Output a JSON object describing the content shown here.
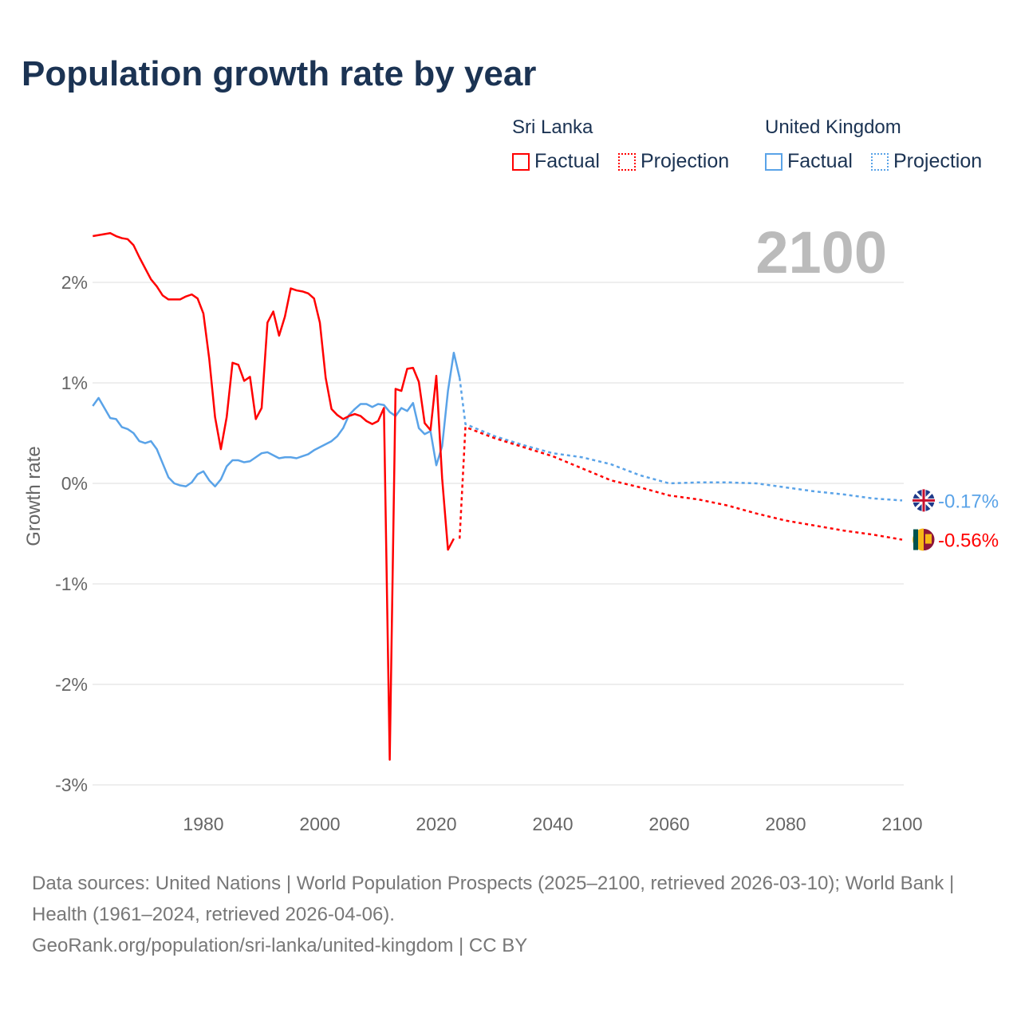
{
  "title": "Population growth rate by year",
  "legend": {
    "groups": [
      {
        "name": "Sri Lanka",
        "factual": "Factual",
        "projection": "Projection",
        "color": "#ff0000"
      },
      {
        "name": "United Kingdom",
        "factual": "Factual",
        "projection": "Projection",
        "color": "#5aa3e8"
      }
    ]
  },
  "sources": {
    "line1": "Data sources: United Nations | World Population Prospects (2025–2100, retrieved 2026-03-10); World Bank | Health (1961–2024, retrieved 2026-04-06).",
    "line2": "GeoRank.org/population/sri-lanka/united-kingdom | CC BY"
  },
  "chart_data": {
    "type": "line",
    "title": "Population growth rate by year",
    "year_label": "2100",
    "xlabel": "",
    "ylabel": "Growth rate",
    "xlim": [
      1961,
      2100
    ],
    "ylim": [
      -3.1,
      2.6
    ],
    "xticks": [
      1980,
      2000,
      2020,
      2040,
      2060,
      2080,
      2100
    ],
    "yticks": [
      {
        "v": 2,
        "label": "2%"
      },
      {
        "v": 1,
        "label": "1%"
      },
      {
        "v": 0,
        "label": "0%"
      },
      {
        "v": -1,
        "label": "-1%"
      },
      {
        "v": -2,
        "label": "-2%"
      },
      {
        "v": -3,
        "label": "-3%"
      }
    ],
    "grid": true,
    "series": [
      {
        "name": "Sri Lanka",
        "color": "#ff0000",
        "end_label": "-0.56%",
        "factual": {
          "start": 1961,
          "values": [
            2.46,
            2.47,
            2.48,
            2.49,
            2.46,
            2.44,
            2.43,
            2.37,
            2.25,
            2.14,
            2.03,
            1.96,
            1.87,
            1.83,
            1.83,
            1.83,
            1.86,
            1.88,
            1.84,
            1.69,
            1.24,
            0.66,
            0.34,
            0.66,
            1.2,
            1.18,
            1.02,
            1.06,
            0.64,
            0.75,
            1.6,
            1.71,
            1.47,
            1.66,
            1.94,
            1.92,
            1.91,
            1.89,
            1.84,
            1.6,
            1.05,
            0.74,
            0.68,
            0.64,
            0.67,
            0.69,
            0.67,
            0.62,
            0.59,
            0.62,
            0.75,
            -2.75,
            0.94,
            0.92,
            1.14,
            1.15,
            1.01,
            0.6,
            0.53,
            1.07,
            0.05,
            -0.66,
            -0.55
          ]
        },
        "projection": {
          "years": [
            2024,
            2025,
            2030,
            2035,
            2040,
            2045,
            2050,
            2055,
            2060,
            2065,
            2070,
            2075,
            2080,
            2085,
            2090,
            2095,
            2100
          ],
          "values": [
            -0.55,
            0.56,
            0.45,
            0.36,
            0.27,
            0.15,
            0.03,
            -0.04,
            -0.12,
            -0.16,
            -0.22,
            -0.3,
            -0.37,
            -0.42,
            -0.47,
            -0.51,
            -0.56
          ]
        }
      },
      {
        "name": "United Kingdom",
        "color": "#5aa3e8",
        "end_label": "-0.17%",
        "factual": {
          "start": 1961,
          "values": [
            0.77,
            0.85,
            0.75,
            0.65,
            0.64,
            0.56,
            0.54,
            0.5,
            0.42,
            0.4,
            0.42,
            0.34,
            0.2,
            0.06,
            0.0,
            -0.02,
            -0.03,
            0.01,
            0.09,
            0.12,
            0.03,
            -0.03,
            0.04,
            0.17,
            0.23,
            0.23,
            0.21,
            0.22,
            0.26,
            0.3,
            0.31,
            0.28,
            0.25,
            0.26,
            0.26,
            0.25,
            0.27,
            0.29,
            0.33,
            0.36,
            0.39,
            0.42,
            0.47,
            0.55,
            0.68,
            0.74,
            0.79,
            0.79,
            0.76,
            0.79,
            0.78,
            0.71,
            0.67,
            0.75,
            0.72,
            0.8,
            0.55,
            0.49,
            0.52,
            0.18,
            0.37,
            0.92,
            1.3,
            1.05
          ]
        },
        "projection": {
          "years": [
            2024,
            2025,
            2030,
            2035,
            2040,
            2045,
            2050,
            2055,
            2060,
            2065,
            2070,
            2075,
            2080,
            2085,
            2090,
            2095,
            2100
          ],
          "values": [
            1.05,
            0.59,
            0.47,
            0.38,
            0.3,
            0.26,
            0.19,
            0.08,
            0.0,
            0.01,
            0.01,
            0.0,
            -0.04,
            -0.08,
            -0.11,
            -0.15,
            -0.17
          ]
        }
      }
    ]
  }
}
